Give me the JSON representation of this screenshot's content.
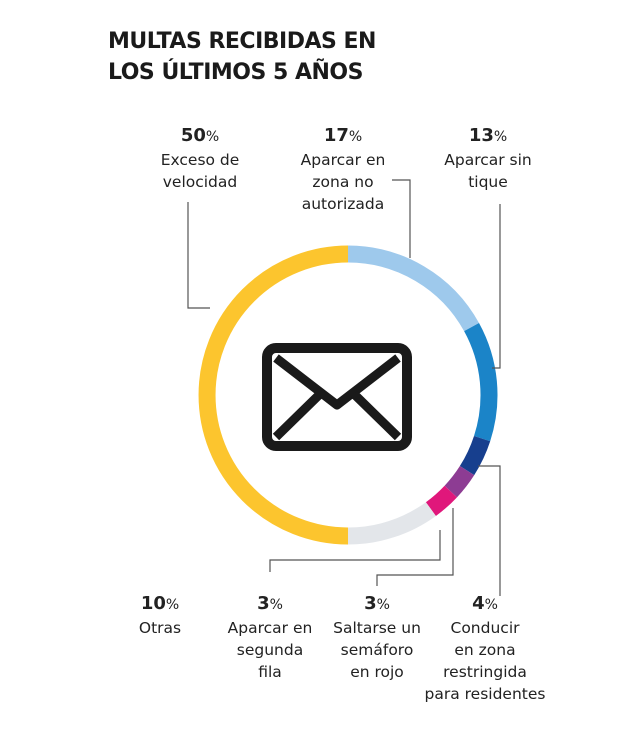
{
  "title_line1": "MULTAS RECIBIDAS EN",
  "title_line2": "LOS ÚLTIMOS 5 AÑOS",
  "center_icon": "envelope-icon",
  "chart_data": {
    "type": "pie",
    "variant": "donut",
    "unit": "%",
    "slices": [
      {
        "label": "Aparcar en zona no autorizada",
        "value": 17,
        "color": "#9ec9ec"
      },
      {
        "label": "Aparcar sin tique",
        "value": 13,
        "color": "#1b84c8"
      },
      {
        "label": "Conducir en zona restringida para residentes",
        "value": 4,
        "color": "#173f8e"
      },
      {
        "label": "Saltarse un semáforo en rojo",
        "value": 3,
        "color": "#8d3c93"
      },
      {
        "label": "Aparcar en segunda fila",
        "value": 3,
        "color": "#e0177b"
      },
      {
        "label": "Otras",
        "value": 10,
        "color": "#e3e6ea"
      },
      {
        "label": "Exceso de velocidad",
        "value": 50,
        "color": "#fcc52e"
      }
    ]
  },
  "labels": [
    {
      "pct": "50",
      "sign": "%",
      "text": "Exceso de\nvelocidad"
    },
    {
      "pct": "17",
      "sign": "%",
      "text": "Aparcar en\nzona no\nautorizada"
    },
    {
      "pct": "13",
      "sign": "%",
      "text": "Aparcar sin\ntique"
    },
    {
      "pct": "10",
      "sign": "%",
      "text": "Otras"
    },
    {
      "pct": "3",
      "sign": "%",
      "text": "Aparcar en\nsegunda\nfila"
    },
    {
      "pct": "3",
      "sign": "%",
      "text": "Saltarse un\nsemáforo\nen rojo"
    },
    {
      "pct": "4",
      "sign": "%",
      "text": "Conducir\nen zona\nrestringida\npara residentes"
    }
  ]
}
